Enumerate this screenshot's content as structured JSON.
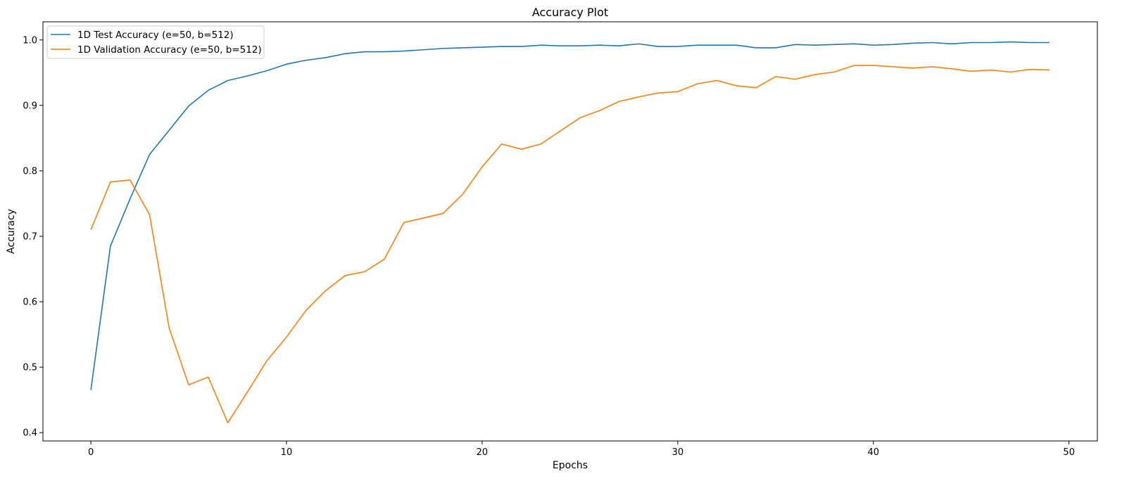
{
  "chart_data": {
    "type": "line",
    "title": "Accuracy Plot",
    "xlabel": "Epochs",
    "ylabel": "Accuracy",
    "xlim": [
      -2.45,
      51.45
    ],
    "ylim": [
      0.3873,
      1.0277
    ],
    "xticks": [
      0,
      10,
      20,
      30,
      40,
      50
    ],
    "yticks": [
      0.4,
      0.5,
      0.6,
      0.7,
      0.8,
      0.9,
      1.0
    ],
    "grid": false,
    "legend_position": "top-left",
    "x": [
      0,
      1,
      2,
      3,
      4,
      5,
      6,
      7,
      8,
      9,
      10,
      11,
      12,
      13,
      14,
      15,
      16,
      17,
      18,
      19,
      20,
      21,
      22,
      23,
      24,
      25,
      26,
      27,
      28,
      29,
      30,
      31,
      32,
      33,
      34,
      35,
      36,
      37,
      38,
      39,
      40,
      41,
      42,
      43,
      44,
      45,
      46,
      47,
      48,
      49
    ],
    "series": [
      {
        "name": "1D Test Accuracy (e=50, b=512)",
        "color": "#1f77b4",
        "values": [
          0.465,
          0.685,
          0.757,
          0.825,
          0.862,
          0.899,
          0.923,
          0.938,
          0.945,
          0.953,
          0.963,
          0.969,
          0.973,
          0.979,
          0.982,
          0.982,
          0.983,
          0.985,
          0.987,
          0.988,
          0.989,
          0.99,
          0.99,
          0.992,
          0.991,
          0.991,
          0.992,
          0.991,
          0.994,
          0.99,
          0.99,
          0.992,
          0.992,
          0.992,
          0.988,
          0.988,
          0.993,
          0.992,
          0.993,
          0.994,
          0.992,
          0.993,
          0.995,
          0.996,
          0.994,
          0.996,
          0.996,
          0.997,
          0.996,
          0.996
        ]
      },
      {
        "name": "1D Validation Accuracy (e=50, b=512)",
        "color": "#ff7f0e",
        "values": [
          0.71,
          0.783,
          0.786,
          0.733,
          0.56,
          0.473,
          0.485,
          0.415,
          0.462,
          0.51,
          0.546,
          0.587,
          0.617,
          0.64,
          0.646,
          0.665,
          0.721,
          0.728,
          0.735,
          0.764,
          0.806,
          0.841,
          0.833,
          0.841,
          0.861,
          0.881,
          0.892,
          0.906,
          0.913,
          0.919,
          0.921,
          0.933,
          0.938,
          0.93,
          0.927,
          0.944,
          0.94,
          0.947,
          0.951,
          0.961,
          0.961,
          0.959,
          0.957,
          0.959,
          0.956,
          0.952,
          0.954,
          0.951,
          0.955,
          0.954
        ]
      }
    ]
  }
}
